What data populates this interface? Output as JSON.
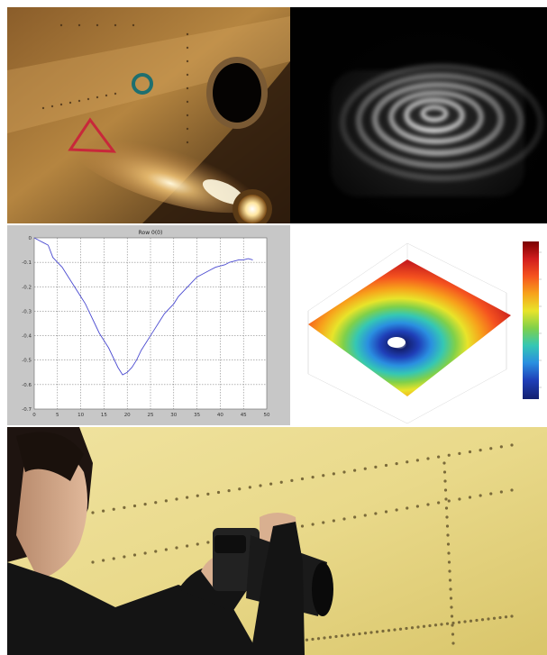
{
  "panels": {
    "photo": {
      "depicts": "fuselage-panel-with-light"
    },
    "fringe": {
      "depicts": "interference-fringes"
    },
    "plot": {
      "chart_data": {
        "type": "line",
        "title": "Row 0(0)",
        "xlabel": "",
        "ylabel": "",
        "xlim": [
          0,
          50
        ],
        "ylim": [
          -0.7,
          0
        ],
        "xticks": [
          0,
          5,
          10,
          15,
          20,
          25,
          30,
          35,
          40,
          45,
          50
        ],
        "yticks": [
          0,
          -0.1,
          -0.2,
          -0.3,
          -0.4,
          -0.5,
          -0.6,
          -0.7
        ],
        "grid": true,
        "series": [
          {
            "color": "#4a4ad0",
            "x": [
              0,
              1,
              2,
              3,
              4,
              5,
              6,
              7,
              8,
              9,
              10,
              11,
              12,
              13,
              14,
              15,
              16,
              17,
              18,
              19,
              20,
              21,
              22,
              23,
              24,
              25,
              26,
              27,
              28,
              29,
              30,
              31,
              32,
              33,
              34,
              35,
              36,
              37,
              38,
              39,
              40,
              41,
              42,
              43,
              44,
              45,
              46,
              47
            ],
            "y": [
              0.0,
              -0.01,
              -0.02,
              -0.03,
              -0.08,
              -0.1,
              -0.12,
              -0.15,
              -0.18,
              -0.21,
              -0.24,
              -0.27,
              -0.31,
              -0.35,
              -0.39,
              -0.42,
              -0.45,
              -0.49,
              -0.53,
              -0.56,
              -0.55,
              -0.53,
              -0.5,
              -0.46,
              -0.43,
              -0.4,
              -0.37,
              -0.34,
              -0.31,
              -0.29,
              -0.27,
              -0.24,
              -0.22,
              -0.2,
              -0.18,
              -0.16,
              -0.15,
              -0.14,
              -0.13,
              -0.12,
              -0.115,
              -0.11,
              -0.1,
              -0.095,
              -0.09,
              -0.09,
              -0.085,
              -0.09
            ]
          }
        ]
      }
    },
    "surface": {
      "depicts": "3d-deflection-surface",
      "colorbar": [
        "#7a0000",
        "#d11d1d",
        "#f5531f",
        "#f7a21b",
        "#e8e42a",
        "#7fd04a",
        "#35c7b4",
        "#2a8fe0",
        "#1f3fb8",
        "#13206f"
      ]
    },
    "worker": {
      "depicts": "technician-with-camera"
    }
  }
}
